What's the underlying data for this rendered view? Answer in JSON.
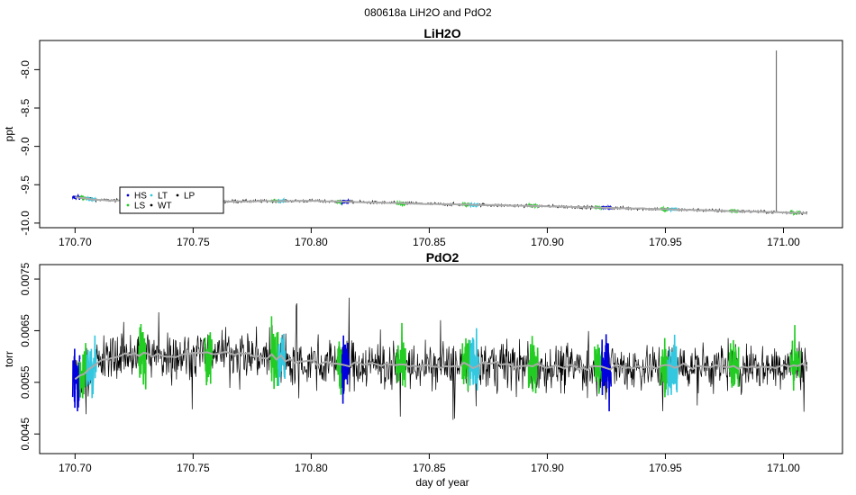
{
  "figure": {
    "suptitle": "080618a   LiH2O and PdO2"
  },
  "chart_data": [
    {
      "type": "line",
      "title": "LiH2O",
      "xlabel": "",
      "ylabel": "ppt",
      "xlim": [
        170.685,
        171.025
      ],
      "ylim": [
        -10.06,
        -7.62
      ],
      "xticks": [
        170.7,
        170.75,
        170.8,
        170.85,
        170.9,
        170.95,
        171.0
      ],
      "xtick_labels": [
        "170.70",
        "170.75",
        "170.80",
        "170.85",
        "170.90",
        "170.95",
        "171.00"
      ],
      "yticks": [
        -10.0,
        -9.5,
        -9.0,
        -8.5,
        -8.0
      ],
      "ytick_labels": [
        "-10.0",
        "-9.5",
        "-9.0",
        "-8.5",
        "-8.0"
      ],
      "x_range": [
        170.7,
        171.01
      ],
      "trend": [
        {
          "x": 170.7,
          "y": -9.66
        },
        {
          "x": 170.71,
          "y": -9.7
        },
        {
          "x": 170.75,
          "y": -9.72
        },
        {
          "x": 170.8,
          "y": -9.71
        },
        {
          "x": 170.85,
          "y": -9.75
        },
        {
          "x": 170.9,
          "y": -9.78
        },
        {
          "x": 170.95,
          "y": -9.82
        },
        {
          "x": 171.0,
          "y": -9.86
        },
        {
          "x": 171.01,
          "y": -9.87
        }
      ],
      "noise_amplitude": 0.035,
      "spike": {
        "x": 170.997,
        "y_top": -7.75
      },
      "series_segments": [
        {
          "code": "HS",
          "color": "#0000dd",
          "x_start": 170.699,
          "x_end": 170.702
        },
        {
          "code": "LS",
          "color": "#22cc22",
          "x_start": 170.702,
          "x_end": 170.705
        },
        {
          "code": "LT",
          "color": "#33c8e0",
          "x_start": 170.705,
          "x_end": 170.709
        },
        {
          "code": "LS",
          "color": "#22cc22",
          "x_start": 170.783,
          "x_end": 170.786
        },
        {
          "code": "LT",
          "color": "#33c8e0",
          "x_start": 170.786,
          "x_end": 170.789
        },
        {
          "code": "LS",
          "color": "#22cc22",
          "x_start": 170.811,
          "x_end": 170.813
        },
        {
          "code": "HS",
          "color": "#0000dd",
          "x_start": 170.813,
          "x_end": 170.816
        },
        {
          "code": "LS",
          "color": "#22cc22",
          "x_start": 170.836,
          "x_end": 170.84
        },
        {
          "code": "LS",
          "color": "#22cc22",
          "x_start": 170.864,
          "x_end": 170.867
        },
        {
          "code": "LT",
          "color": "#33c8e0",
          "x_start": 170.867,
          "x_end": 170.871
        },
        {
          "code": "LS",
          "color": "#22cc22",
          "x_start": 170.892,
          "x_end": 170.896
        },
        {
          "code": "LS",
          "color": "#22cc22",
          "x_start": 170.92,
          "x_end": 170.923
        },
        {
          "code": "HS",
          "color": "#0000dd",
          "x_start": 170.923,
          "x_end": 170.927
        },
        {
          "code": "LS",
          "color": "#22cc22",
          "x_start": 170.948,
          "x_end": 170.951
        },
        {
          "code": "LT",
          "color": "#33c8e0",
          "x_start": 170.951,
          "x_end": 170.955
        },
        {
          "code": "LS",
          "color": "#22cc22",
          "x_start": 170.977,
          "x_end": 170.981
        },
        {
          "code": "LS",
          "color": "#22cc22",
          "x_start": 171.003,
          "x_end": 171.007
        }
      ],
      "legend": {
        "placement": "bottom-left",
        "items": [
          {
            "label": "HS",
            "color": "#0000dd"
          },
          {
            "label": "LT",
            "color": "#33c8e0"
          },
          {
            "label": "LP",
            "color": "#000000"
          },
          {
            "label": "LS",
            "color": "#22cc22"
          },
          {
            "label": "WT",
            "color": "#000000"
          }
        ]
      },
      "grid": false,
      "colors": {
        "raw": "#000000",
        "smooth": "#aaaaaa"
      }
    },
    {
      "type": "line",
      "title": "PdO2",
      "xlabel": "day of year",
      "ylabel": "torr",
      "xlim": [
        170.685,
        171.025
      ],
      "ylim": [
        0.00412,
        0.00778
      ],
      "xticks": [
        170.7,
        170.75,
        170.8,
        170.85,
        170.9,
        170.95,
        171.0
      ],
      "xtick_labels": [
        "170.70",
        "170.75",
        "170.80",
        "170.85",
        "170.90",
        "170.95",
        "171.00"
      ],
      "yticks": [
        0.0045,
        0.0055,
        0.0065,
        0.0075
      ],
      "ytick_labels": [
        "0.0045",
        "0.0055",
        "0.0065",
        "0.0075"
      ],
      "x_range": [
        170.7,
        171.01
      ],
      "trend": [
        {
          "x": 170.7,
          "y": 0.00555
        },
        {
          "x": 170.71,
          "y": 0.0059
        },
        {
          "x": 170.72,
          "y": 0.00605
        },
        {
          "x": 170.74,
          "y": 0.006
        },
        {
          "x": 170.76,
          "y": 0.0061
        },
        {
          "x": 170.78,
          "y": 0.006
        },
        {
          "x": 170.8,
          "y": 0.0059
        },
        {
          "x": 170.82,
          "y": 0.00585
        },
        {
          "x": 170.85,
          "y": 0.0058
        },
        {
          "x": 170.88,
          "y": 0.00585
        },
        {
          "x": 170.9,
          "y": 0.0058
        },
        {
          "x": 170.93,
          "y": 0.0058
        },
        {
          "x": 170.96,
          "y": 0.0058
        },
        {
          "x": 170.99,
          "y": 0.0058
        },
        {
          "x": 171.01,
          "y": 0.00585
        }
      ],
      "noise_amplitude": 0.00045,
      "series_segments": [
        {
          "code": "HS",
          "color": "#0000dd",
          "x_start": 170.699,
          "x_end": 170.702
        },
        {
          "code": "LS",
          "color": "#22cc22",
          "x_start": 170.702,
          "x_end": 170.705
        },
        {
          "code": "LT",
          "color": "#33c8e0",
          "x_start": 170.705,
          "x_end": 170.709
        },
        {
          "code": "LS",
          "color": "#22cc22",
          "x_start": 170.727,
          "x_end": 170.73
        },
        {
          "code": "LS",
          "color": "#22cc22",
          "x_start": 170.755,
          "x_end": 170.758
        },
        {
          "code": "LS",
          "color": "#22cc22",
          "x_start": 170.783,
          "x_end": 170.786
        },
        {
          "code": "LT",
          "color": "#33c8e0",
          "x_start": 170.786,
          "x_end": 170.789
        },
        {
          "code": "LS",
          "color": "#22cc22",
          "x_start": 170.811,
          "x_end": 170.813
        },
        {
          "code": "HS",
          "color": "#0000dd",
          "x_start": 170.813,
          "x_end": 170.816
        },
        {
          "code": "LS",
          "color": "#22cc22",
          "x_start": 170.836,
          "x_end": 170.84
        },
        {
          "code": "LS",
          "color": "#22cc22",
          "x_start": 170.864,
          "x_end": 170.867
        },
        {
          "code": "LT",
          "color": "#33c8e0",
          "x_start": 170.867,
          "x_end": 170.871
        },
        {
          "code": "LS",
          "color": "#22cc22",
          "x_start": 170.892,
          "x_end": 170.896
        },
        {
          "code": "LS",
          "color": "#22cc22",
          "x_start": 170.92,
          "x_end": 170.923
        },
        {
          "code": "HS",
          "color": "#0000dd",
          "x_start": 170.923,
          "x_end": 170.927
        },
        {
          "code": "LS",
          "color": "#22cc22",
          "x_start": 170.948,
          "x_end": 170.951
        },
        {
          "code": "LT",
          "color": "#33c8e0",
          "x_start": 170.951,
          "x_end": 170.955
        },
        {
          "code": "LS",
          "color": "#22cc22",
          "x_start": 170.977,
          "x_end": 170.981
        },
        {
          "code": "LS",
          "color": "#22cc22",
          "x_start": 171.003,
          "x_end": 171.007
        }
      ],
      "grid": false,
      "colors": {
        "raw": "#000000",
        "smooth": "#aaaaaa"
      }
    }
  ]
}
